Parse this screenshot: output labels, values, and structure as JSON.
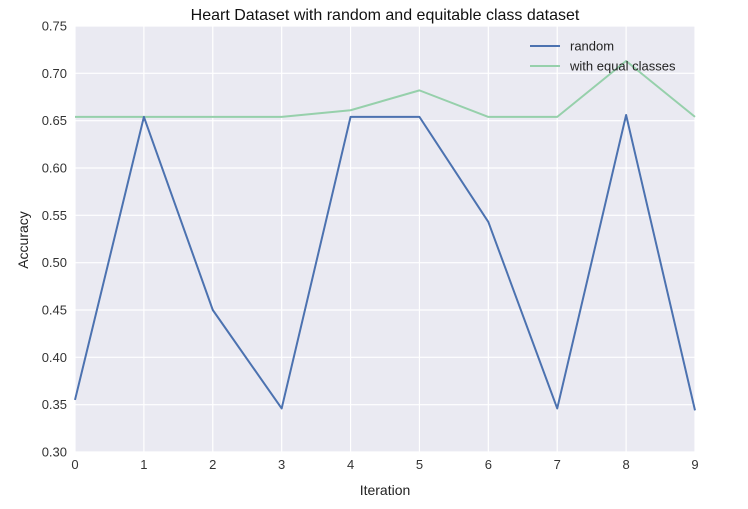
{
  "chart_data": {
    "type": "line",
    "title": "Heart Dataset with random and equitable class dataset",
    "xlabel": "Iteration",
    "ylabel": "Accuracy",
    "x": [
      0,
      1,
      2,
      3,
      4,
      5,
      6,
      7,
      8,
      9
    ],
    "xlim": [
      0,
      9
    ],
    "ylim": [
      0.3,
      0.75
    ],
    "xticks": [
      "0",
      "1",
      "2",
      "3",
      "4",
      "5",
      "6",
      "7",
      "8",
      "9"
    ],
    "yticks": [
      "0.30",
      "0.35",
      "0.40",
      "0.45",
      "0.50",
      "0.55",
      "0.60",
      "0.65",
      "0.70",
      "0.75"
    ],
    "grid": true,
    "legend_position": "top-right",
    "background": "#EAEAF2",
    "series": [
      {
        "name": "random",
        "color": "#4C72B0",
        "values": [
          0.355,
          0.654,
          0.45,
          0.346,
          0.654,
          0.654,
          0.543,
          0.346,
          0.656,
          0.344
        ]
      },
      {
        "name": "with equal classes",
        "color": "#96D0AB",
        "values": [
          0.654,
          0.654,
          0.654,
          0.654,
          0.661,
          0.682,
          0.654,
          0.654,
          0.713,
          0.654
        ]
      }
    ]
  }
}
